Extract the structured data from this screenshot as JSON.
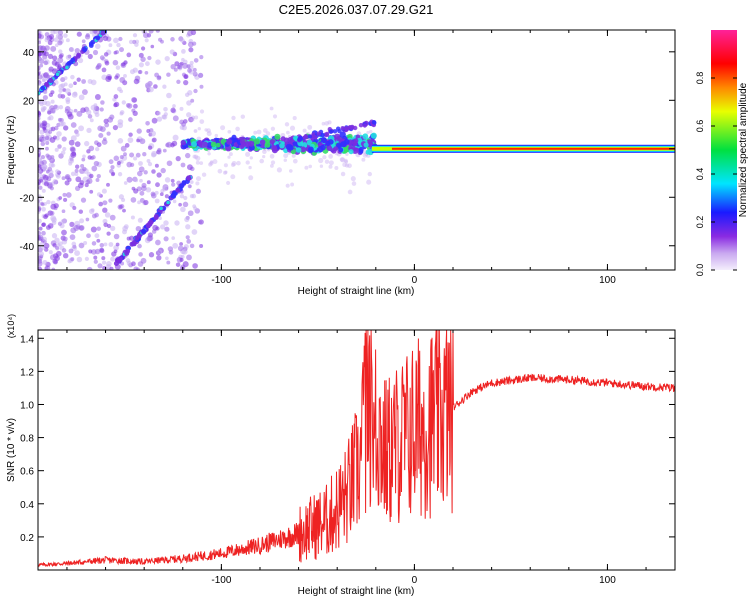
{
  "title": "C2E5.2026.037.07.29.G21",
  "chart_data": [
    {
      "type": "heatmap",
      "title": "C2E5.2026.037.07.29.G21",
      "xlabel": "Height of straight line (km)",
      "ylabel": "Frequency (Hz)",
      "xlim": [
        -195,
        135
      ],
      "ylim": [
        -50,
        49
      ],
      "xticks": [
        -100,
        0,
        100
      ],
      "yticks": [
        -40,
        -20,
        0,
        20,
        40
      ],
      "colorbar": {
        "label": "Normalized spectral amplitude",
        "range": [
          0,
          1
        ],
        "ticks": [
          0.0,
          0.2,
          0.4,
          0.6,
          0.8
        ]
      },
      "features": [
        {
          "name": "carrier-line",
          "x_range": [
            -22,
            135
          ],
          "frequency": 0
        },
        {
          "name": "scattered-band",
          "x_range": [
            -120,
            -20
          ],
          "frequency_range": [
            -5,
            10
          ]
        },
        {
          "name": "upper-diagonal",
          "points": [
            [
              -195,
              23
            ],
            [
              -160,
              49
            ]
          ]
        },
        {
          "name": "lower-diagonal",
          "points": [
            [
              -155,
              -48
            ],
            [
              -115,
              -10
            ]
          ]
        }
      ]
    },
    {
      "type": "line",
      "xlabel": "Height of straight line (km)",
      "ylabel": "SNR (10 * v/v)",
      "y_multiplier": "(x10⁴)",
      "xlim": [
        -195,
        135
      ],
      "ylim": [
        0,
        1.45
      ],
      "xticks": [
        -100,
        0,
        100
      ],
      "yticks": [
        0.2,
        0.4,
        0.6,
        0.8,
        1.0,
        1.2,
        1.4
      ],
      "series": [
        {
          "name": "SNR",
          "color": "#ee2222",
          "x": [
            -195,
            -180,
            -160,
            -140,
            -120,
            -100,
            -80,
            -60,
            -45,
            -35,
            -28,
            -24,
            -20,
            -15,
            -10,
            -5,
            0,
            10,
            20,
            30,
            40,
            60,
            80,
            100,
            120,
            135
          ],
          "y": [
            0.03,
            0.04,
            0.06,
            0.05,
            0.07,
            0.1,
            0.15,
            0.22,
            0.3,
            0.45,
            0.65,
            1.1,
            0.9,
            0.7,
            0.75,
            0.8,
            0.85,
            0.9,
            0.98,
            1.08,
            1.13,
            1.16,
            1.15,
            1.13,
            1.11,
            1.1
          ]
        }
      ]
    }
  ]
}
